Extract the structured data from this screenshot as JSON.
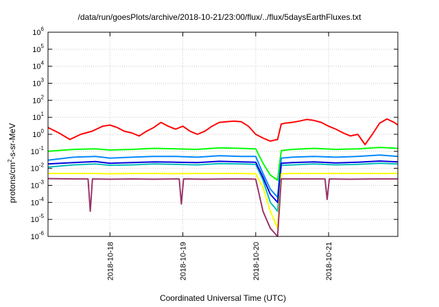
{
  "chart_data": {
    "type": "line",
    "title": "/data/run/goesPlots/archive/2018-10-21/23:00/flux/../flux/5daysEarthFluxes.txt",
    "xlabel": "Coordinated Universal Time (UTC)",
    "ylabel": {
      "prefix": "protons/cm",
      "sup": "2",
      "suffix": "-s-sr-MeV"
    },
    "yscale": "log",
    "ylim_exp": [
      -6,
      6
    ],
    "y_ticks": [
      {
        "base": "10",
        "exp": "6"
      },
      {
        "base": "10",
        "exp": "5"
      },
      {
        "base": "10",
        "exp": "4"
      },
      {
        "base": "10",
        "exp": "3"
      },
      {
        "base": "10",
        "exp": "2"
      },
      {
        "base": "10",
        "exp": "1"
      },
      {
        "base": "10",
        "exp": "0"
      },
      {
        "base": "10",
        "exp": "-1"
      },
      {
        "base": "10",
        "exp": "-2"
      },
      {
        "base": "10",
        "exp": "-3"
      },
      {
        "base": "10",
        "exp": "-4"
      },
      {
        "base": "10",
        "exp": "-5"
      },
      {
        "base": "10",
        "exp": "-6"
      }
    ],
    "xlim_days": [
      -0.85,
      3.95
    ],
    "x_ticks": [
      {
        "label": "2018-10-18",
        "day": 0
      },
      {
        "label": "2018-10-19",
        "day": 1
      },
      {
        "label": "2018-10-20",
        "day": 2
      },
      {
        "label": "2018-10-21",
        "day": 3
      }
    ],
    "grid": true,
    "series": [
      {
        "color": "#ff0000",
        "x": [
          -0.85,
          -0.7,
          -0.55,
          -0.4,
          -0.25,
          -0.1,
          0.0,
          0.1,
          0.2,
          0.3,
          0.4,
          0.5,
          0.6,
          0.7,
          0.8,
          0.9,
          1.0,
          1.1,
          1.2,
          1.3,
          1.4,
          1.5,
          1.6,
          1.7,
          1.8,
          1.9,
          2.0,
          2.1,
          2.2,
          2.3,
          2.35,
          2.4,
          2.5,
          2.6,
          2.7,
          2.8,
          2.9,
          3.0,
          3.1,
          3.2,
          3.3,
          3.4,
          3.5,
          3.6,
          3.7,
          3.8,
          3.9,
          3.95
        ],
        "y": [
          2.5,
          1.2,
          0.5,
          1.0,
          1.5,
          3.0,
          3.5,
          2.5,
          1.5,
          1.2,
          0.8,
          1.5,
          2.5,
          5.0,
          3.0,
          2.0,
          3.0,
          1.5,
          1.0,
          1.5,
          3.0,
          5.0,
          5.5,
          6.0,
          5.5,
          3.0,
          1.0,
          0.6,
          0.4,
          0.5,
          4.0,
          4.5,
          5.0,
          6.0,
          7.5,
          6.5,
          5.0,
          3.0,
          2.0,
          1.2,
          0.8,
          1.0,
          0.25,
          1.0,
          4.5,
          8.0,
          5.0,
          3.5
        ]
      },
      {
        "color": "#00ff00",
        "x": [
          -0.85,
          -0.5,
          -0.2,
          0.0,
          0.3,
          0.6,
          0.9,
          1.2,
          1.5,
          1.8,
          2.0,
          2.1,
          2.2,
          2.3,
          2.35,
          2.5,
          2.8,
          3.1,
          3.4,
          3.7,
          3.95
        ],
        "y": [
          0.1,
          0.13,
          0.14,
          0.12,
          0.13,
          0.15,
          0.14,
          0.13,
          0.16,
          0.15,
          0.14,
          0.02,
          0.004,
          0.002,
          0.11,
          0.13,
          0.15,
          0.13,
          0.14,
          0.17,
          0.15
        ]
      },
      {
        "color": "#0088ff",
        "x": [
          -0.85,
          -0.5,
          -0.2,
          0.0,
          0.3,
          0.6,
          0.9,
          1.2,
          1.5,
          1.8,
          2.0,
          2.1,
          2.2,
          2.3,
          2.35,
          2.5,
          2.8,
          3.1,
          3.4,
          3.7,
          3.95
        ],
        "y": [
          0.03,
          0.045,
          0.05,
          0.04,
          0.045,
          0.05,
          0.05,
          0.045,
          0.055,
          0.05,
          0.05,
          0.005,
          0.0006,
          0.0002,
          0.04,
          0.045,
          0.05,
          0.045,
          0.05,
          0.06,
          0.05
        ]
      },
      {
        "color": "#00bbbb",
        "x": [
          -0.85,
          -0.5,
          -0.2,
          0.0,
          0.3,
          0.6,
          0.9,
          1.2,
          1.5,
          1.8,
          2.0,
          2.1,
          2.2,
          2.3,
          2.35,
          2.5,
          2.8,
          3.1,
          3.4,
          3.7,
          3.95
        ],
        "y": [
          0.012,
          0.016,
          0.018,
          0.015,
          0.016,
          0.018,
          0.017,
          0.016,
          0.019,
          0.018,
          0.017,
          0.002,
          0.0001,
          3e-05,
          0.015,
          0.016,
          0.018,
          0.016,
          0.017,
          0.02,
          0.018
        ]
      },
      {
        "color": "#0000dd",
        "x": [
          -0.85,
          -0.5,
          -0.2,
          0.0,
          0.3,
          0.6,
          0.9,
          1.2,
          1.5,
          1.8,
          2.0,
          2.1,
          2.2,
          2.3,
          2.35,
          2.5,
          2.8,
          3.1,
          3.4,
          3.7,
          3.95
        ],
        "y": [
          0.018,
          0.022,
          0.025,
          0.02,
          0.022,
          0.024,
          0.023,
          0.022,
          0.026,
          0.024,
          0.023,
          0.003,
          0.0003,
          0.0001,
          0.02,
          0.022,
          0.024,
          0.021,
          0.023,
          0.027,
          0.024
        ]
      },
      {
        "color": "#ffff00",
        "x": [
          -0.85,
          -0.5,
          -0.2,
          0.0,
          0.3,
          0.6,
          0.9,
          1.2,
          1.5,
          1.8,
          2.0,
          2.1,
          2.2,
          2.3,
          2.35,
          2.5,
          2.8,
          3.1,
          3.4,
          3.7,
          3.95
        ],
        "y": [
          0.005,
          0.005,
          0.005,
          0.0048,
          0.005,
          0.005,
          0.0049,
          0.005,
          0.005,
          0.005,
          0.0048,
          0.0008,
          3e-05,
          3e-06,
          0.0048,
          0.005,
          0.005,
          0.005,
          0.005,
          0.005,
          0.005
        ]
      },
      {
        "color": "#993366",
        "x": [
          -0.85,
          -0.5,
          -0.3,
          -0.27,
          -0.24,
          0.0,
          0.3,
          0.6,
          0.95,
          0.98,
          1.01,
          1.3,
          1.6,
          1.9,
          2.0,
          2.1,
          2.2,
          2.3,
          2.35,
          2.5,
          2.8,
          2.95,
          2.98,
          3.01,
          3.3,
          3.6,
          3.95
        ],
        "y": [
          0.0025,
          0.0024,
          0.0024,
          3e-05,
          0.0024,
          0.0023,
          0.0024,
          0.0023,
          0.0024,
          8e-05,
          0.0024,
          0.0023,
          0.0024,
          0.0024,
          0.0023,
          3e-05,
          3e-06,
          1e-06,
          0.0024,
          0.0024,
          0.0024,
          0.0024,
          0.00015,
          0.0024,
          0.0023,
          0.0024,
          0.0024
        ]
      }
    ]
  }
}
